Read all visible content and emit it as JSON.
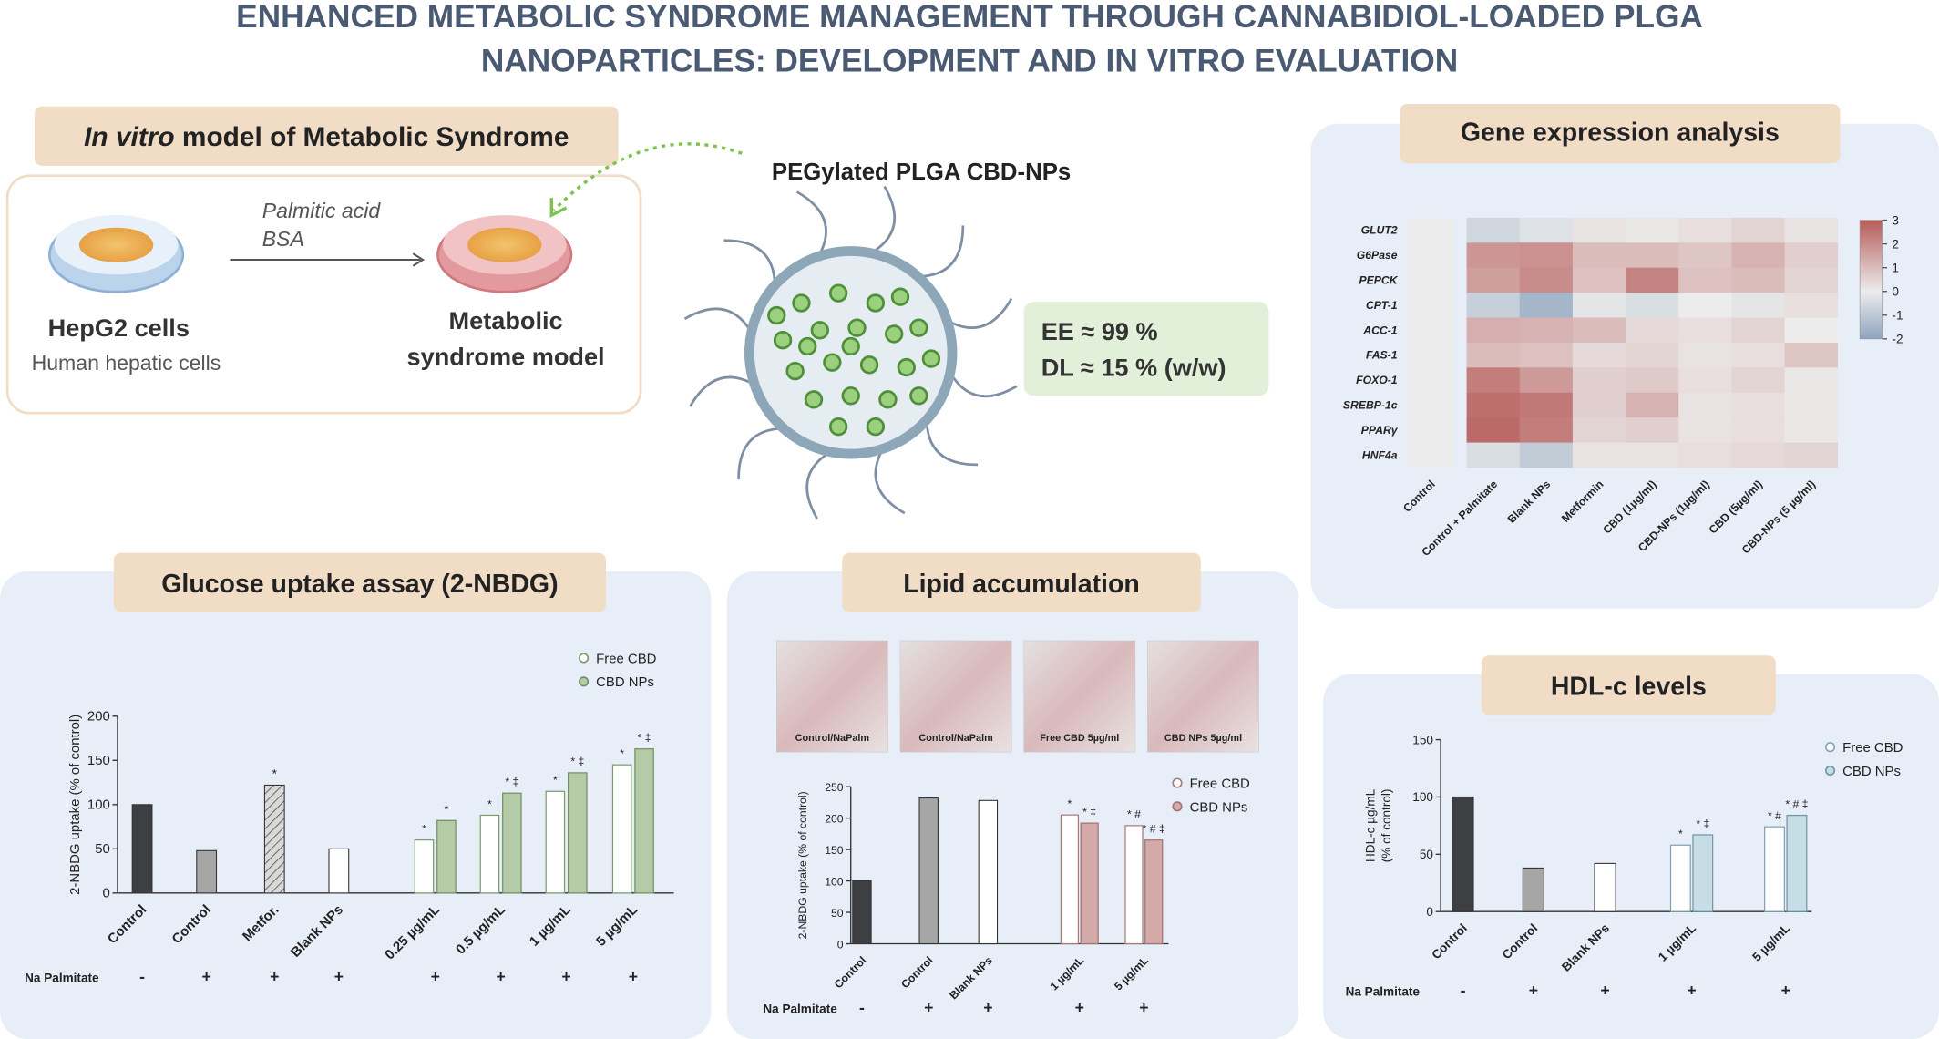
{
  "title": [
    "ENHANCED METABOLIC SYNDROME MANAGEMENT THROUGH CANNABIDIOL-LOADED PLGA",
    "NANOPARTICLES: DEVELOPMENT AND IN VITRO EVALUATION"
  ],
  "model": {
    "title_italic": "In vitro",
    "title_rest": " model of Metabolic Syndrome",
    "treatment": [
      "Palmitic acid",
      "BSA"
    ],
    "left_label": "HepG2 cells",
    "left_sublabel": "Human hepatic cells",
    "right_label": [
      "Metabolic",
      "syndrome model"
    ]
  },
  "nanoparticle": {
    "label": "PEGylated PLGA CBD-NPs",
    "ee": "EE ≈  99 %",
    "dl": "DL ≈  15 % (w/w)"
  },
  "gene_expression": {
    "type": "heatmap",
    "title": "Gene expression analysis",
    "genes": [
      "GLUT2",
      "G6Pase",
      "PEPCK",
      "CPT-1",
      "ACC-1",
      "FAS-1",
      "FOXO-1",
      "SREBP-1c",
      "PPARγ",
      "HNF4a"
    ],
    "conditions": [
      "Control",
      "Control + Palmitate",
      "Blank NPs",
      "Metformin",
      "CBD (1µg/ml)",
      "CBD-NPs (1µg/ml)",
      "CBD (5µg/ml)",
      "CBD-NPs (5 µg/ml)"
    ],
    "values": [
      [
        0,
        -0.6,
        -0.3,
        0.2,
        0.1,
        0.3,
        0.5,
        0.2
      ],
      [
        0,
        1.8,
        1.9,
        1.0,
        1.0,
        0.8,
        1.2,
        0.6
      ],
      [
        0,
        1.6,
        2.0,
        0.9,
        2.2,
        0.9,
        1.0,
        0.5
      ],
      [
        0,
        -0.8,
        -1.5,
        -0.2,
        -0.4,
        0,
        -0.2,
        0.3
      ],
      [
        0,
        1.3,
        1.2,
        1.0,
        0.4,
        0.3,
        0.5,
        0
      ],
      [
        0,
        1.0,
        0.9,
        0.4,
        0.5,
        0.2,
        0.3,
        0.8
      ],
      [
        0,
        2.3,
        1.7,
        0.6,
        0.7,
        0.3,
        0.5,
        0.1
      ],
      [
        0,
        2.6,
        2.4,
        0.6,
        1.2,
        0.2,
        0.3,
        0.1
      ],
      [
        0,
        2.7,
        2.3,
        0.5,
        0.6,
        0.2,
        0.3,
        0.1
      ],
      [
        0,
        -0.4,
        -0.9,
        0.2,
        0.2,
        0.3,
        0.4,
        0.5
      ]
    ],
    "clim": [
      -2,
      3
    ],
    "cticks": [
      3,
      2,
      1,
      0,
      -1,
      -2
    ],
    "colors": {
      "low": "#8ea4be",
      "mid": "#ececec",
      "high": "#b65c5a"
    }
  },
  "glucose": {
    "type": "bar",
    "title": "Glucose uptake assay  (2-NBDG)",
    "ylabel": [
      "2-NBDG uptake (% of control)"
    ],
    "categories": [
      "Control",
      "Control",
      "Metfor.",
      "Blank NPs",
      "0.25 µg/mL",
      "0.5 µg/mL",
      "1 µg/mL",
      "5 µg/mL"
    ],
    "palmitate_label": "Na Palmitate",
    "palmitate": [
      "-",
      "+",
      "+",
      "+",
      "+",
      "+",
      "+",
      "+"
    ],
    "control_values": [
      100,
      48,
      122,
      50,
      null,
      null,
      null,
      null
    ],
    "control_colors": [
      "#3d3f42",
      "#a6a6a6",
      "#bdbdbd",
      "#ffffff",
      null,
      null,
      null,
      null
    ],
    "control_hatch": [
      false,
      false,
      true,
      false,
      false,
      false,
      false,
      false
    ],
    "control_marks": [
      null,
      null,
      "*",
      null,
      null,
      null,
      null,
      null
    ],
    "series": [
      {
        "name": "Free CBD",
        "color": "#ffffff",
        "edge": "#7a9a6a",
        "values": [
          null,
          null,
          null,
          null,
          60,
          88,
          115,
          145
        ],
        "marks": [
          null,
          null,
          null,
          null,
          "*",
          "*",
          "*",
          "*"
        ]
      },
      {
        "name": "CBD NPs",
        "color": "#b5cba8",
        "edge": "#6f8f60",
        "values": [
          null,
          null,
          null,
          null,
          82,
          113,
          136,
          163
        ],
        "marks": [
          null,
          null,
          null,
          null,
          "*",
          "* ‡",
          "* ‡",
          "* ‡"
        ]
      }
    ],
    "ylim": [
      0,
      200
    ],
    "yticks": [
      0,
      50,
      100,
      150,
      200
    ]
  },
  "lipid": {
    "type": "bar",
    "title": "Lipid accumulation",
    "images": [
      "Control/NaPalm",
      "Control/NaPalm",
      "Free CBD 5µg/ml",
      "CBD NPs 5µg/ml"
    ],
    "ylabel": [
      "2-NBDG uptake (% of control)"
    ],
    "categories": [
      "Control",
      "Control",
      "Blank NPs",
      "1 µg/mL",
      "5 µg/mL"
    ],
    "palmitate_label": "Na Palmitate",
    "palmitate": [
      "-",
      "+",
      "+",
      "+",
      "+"
    ],
    "control_values": [
      100,
      232,
      228,
      null,
      null
    ],
    "control_colors": [
      "#3d3f42",
      "#a6a6a6",
      "#ffffff",
      null,
      null
    ],
    "control_hatch": [
      false,
      false,
      false,
      false,
      false
    ],
    "control_marks": [
      null,
      null,
      null,
      null,
      null
    ],
    "series": [
      {
        "name": "Free CBD",
        "color": "#ffffff",
        "edge": "#a77a78",
        "values": [
          null,
          null,
          null,
          205,
          188
        ],
        "marks": [
          null,
          null,
          null,
          "*",
          "* #"
        ]
      },
      {
        "name": "CBD NPs",
        "color": "#d4aaa8",
        "edge": "#a07270",
        "values": [
          null,
          null,
          null,
          192,
          165
        ],
        "marks": [
          null,
          null,
          null,
          "* ‡",
          "* # ‡"
        ]
      }
    ],
    "ylim": [
      0,
      250
    ],
    "yticks": [
      0,
      50,
      100,
      150,
      200,
      250
    ]
  },
  "hdl": {
    "type": "bar",
    "title": "HDL-c levels",
    "ylabel": [
      "HDL-c µg/mL",
      "(% of control)"
    ],
    "categories": [
      "Control",
      "Control",
      "Blank NPs",
      "1 µg/mL",
      "5 µg/mL"
    ],
    "palmitate_label": "Na Palmitate",
    "palmitate": [
      "-",
      "+",
      "+",
      "+",
      "+"
    ],
    "control_values": [
      100,
      38,
      42,
      null,
      null
    ],
    "control_colors": [
      "#3d3f42",
      "#a6a6a6",
      "#ffffff",
      null,
      null
    ],
    "control_hatch": [
      false,
      false,
      false,
      false,
      false
    ],
    "control_marks": [
      null,
      null,
      null,
      null,
      null
    ],
    "series": [
      {
        "name": "Free CBD",
        "color": "#ffffff",
        "edge": "#7fa3b3",
        "values": [
          null,
          null,
          null,
          58,
          74
        ],
        "marks": [
          null,
          null,
          null,
          "*",
          "* #"
        ]
      },
      {
        "name": "CBD NPs",
        "color": "#c6dde6",
        "edge": "#6f96a8",
        "values": [
          null,
          null,
          null,
          67,
          84
        ],
        "marks": [
          null,
          null,
          null,
          "* ‡",
          "* # ‡"
        ]
      }
    ],
    "ylim": [
      0,
      150
    ],
    "yticks": [
      0,
      50,
      100,
      150
    ]
  }
}
